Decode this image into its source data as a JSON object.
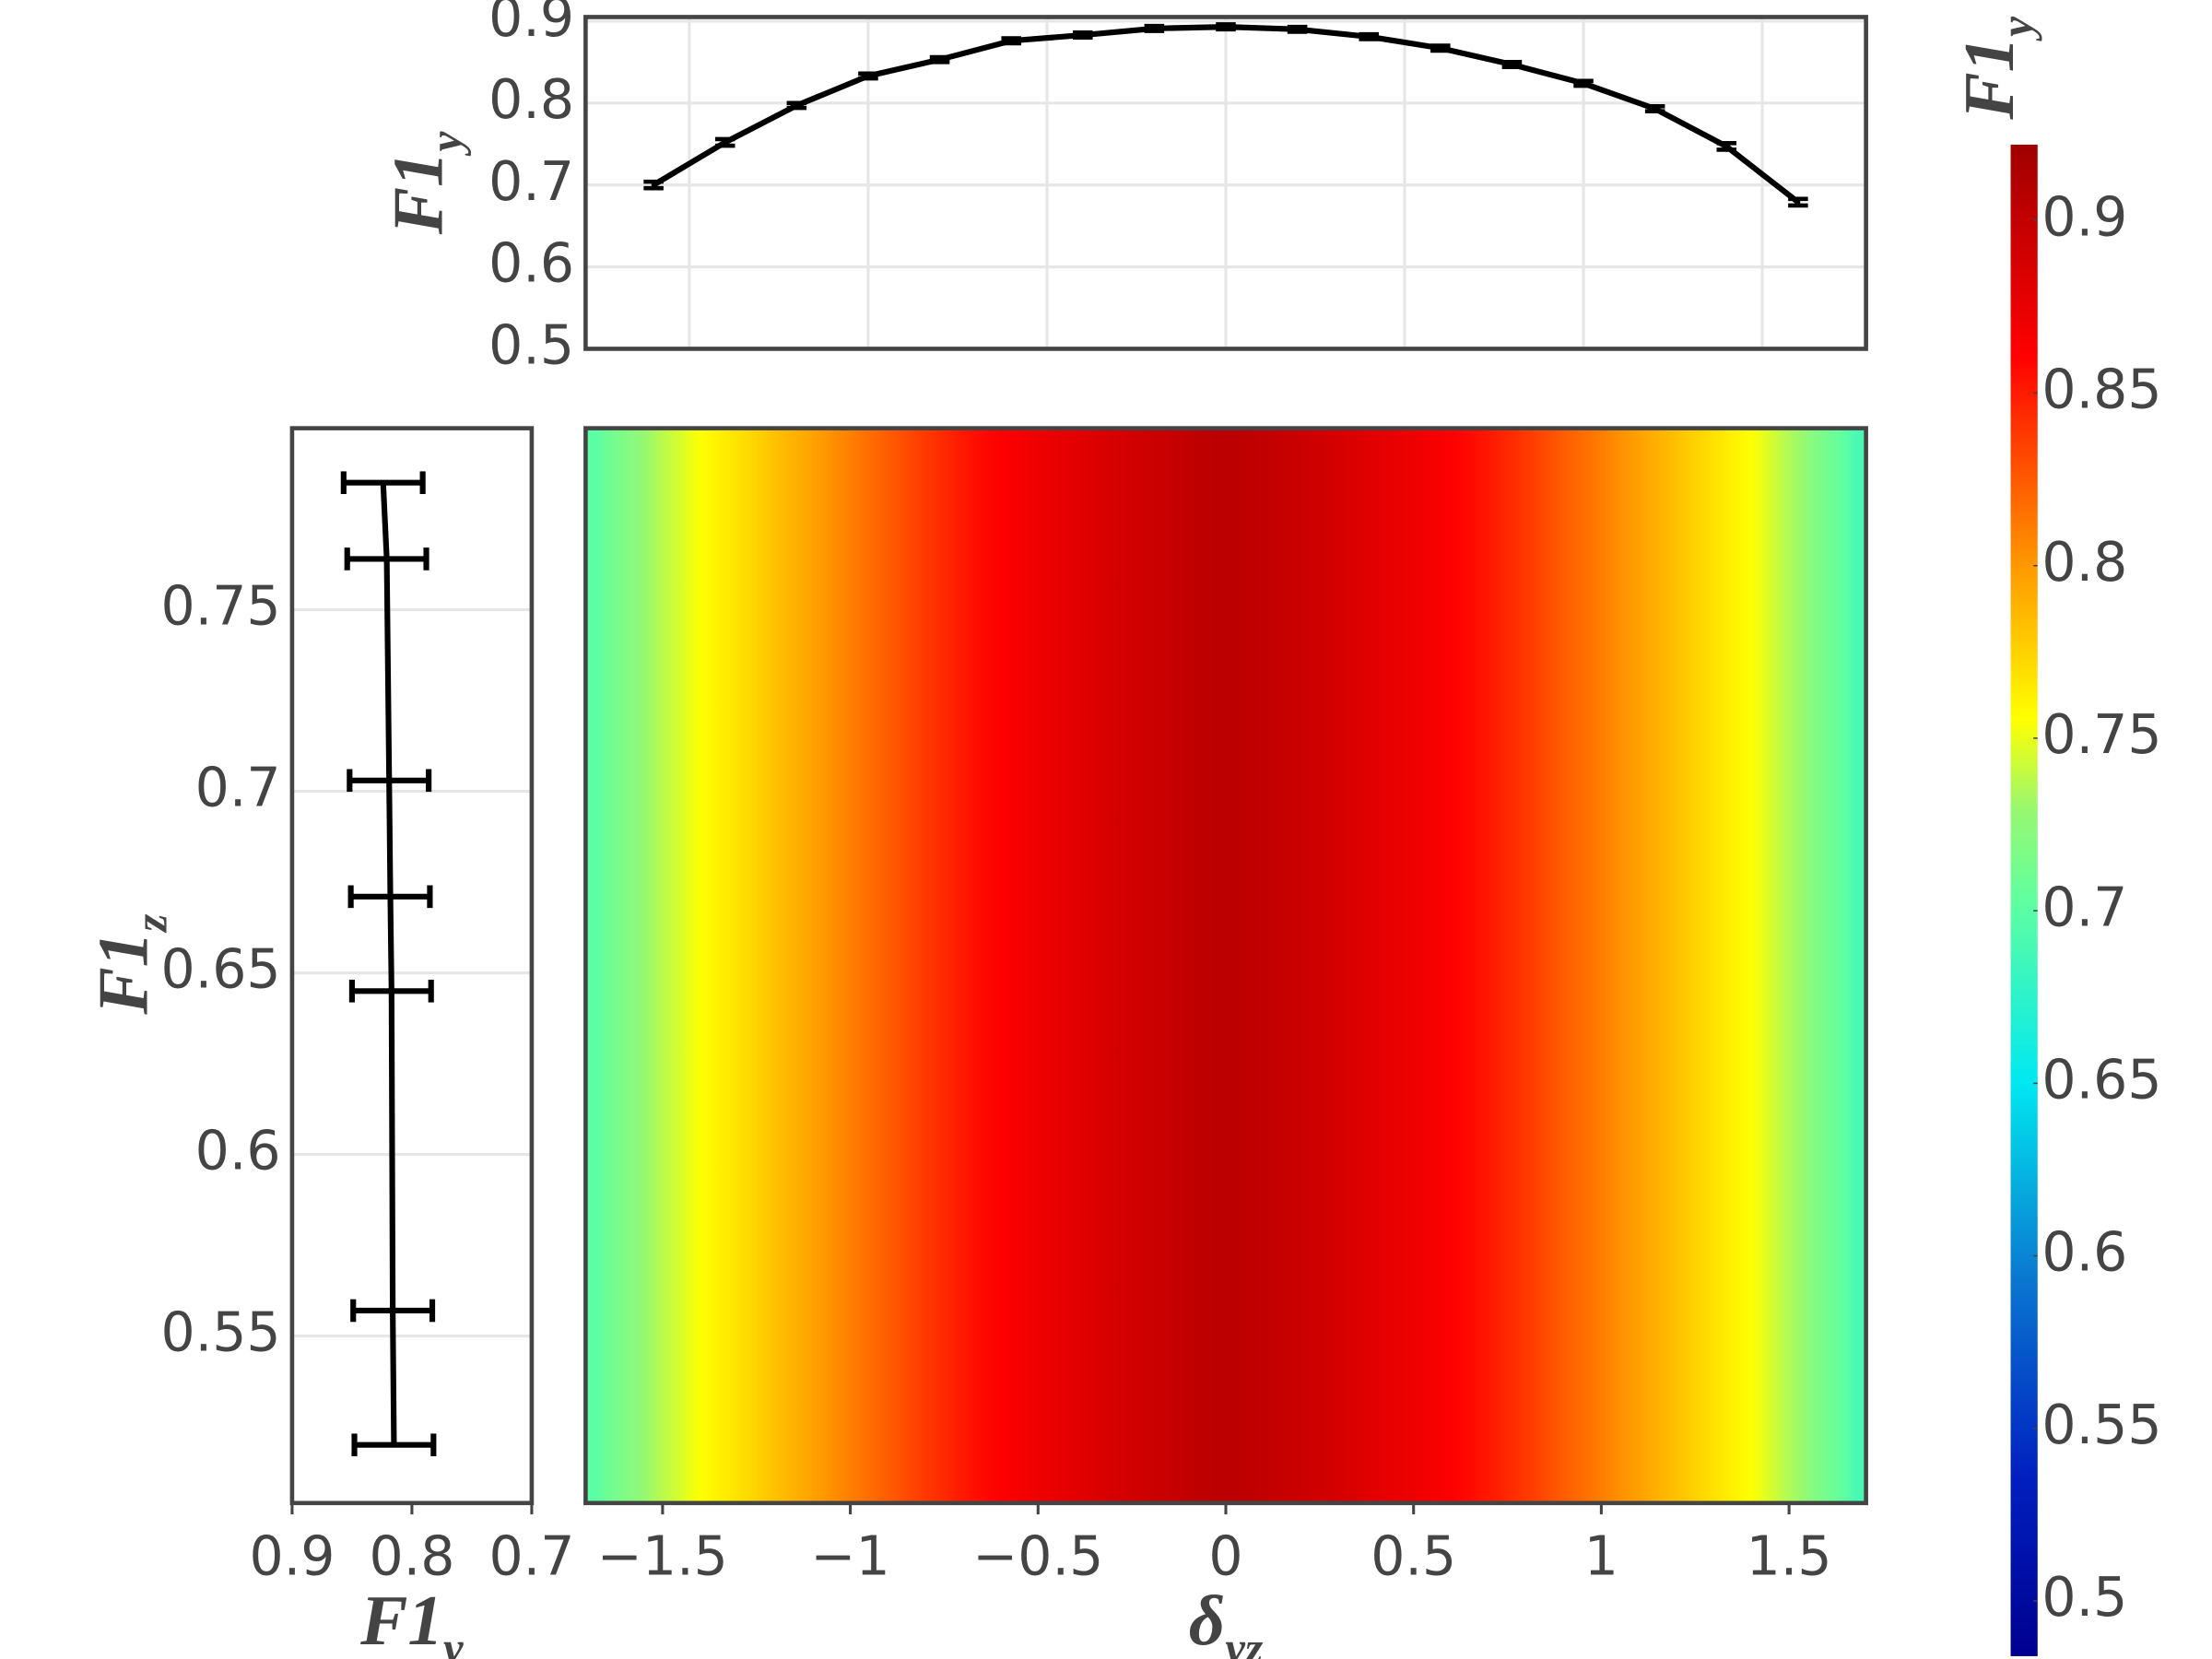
{
  "chart_data": [
    {
      "type": "line",
      "y_label": {
        "base": "F1",
        "sub": "y"
      },
      "x": [
        -1.6,
        -1.4,
        -1.2,
        -1.0,
        -0.8,
        -0.6,
        -0.4,
        -0.2,
        0,
        0.2,
        0.4,
        0.6,
        0.8,
        1.0,
        1.2,
        1.4,
        1.6
      ],
      "values": [
        0.7,
        0.752,
        0.797,
        0.833,
        0.853,
        0.876,
        0.883,
        0.891,
        0.893,
        0.89,
        0.881,
        0.867,
        0.847,
        0.824,
        0.793,
        0.747,
        0.679
      ],
      "errors": [
        0.004,
        0.004,
        0.003,
        0.003,
        0.003,
        0.003,
        0.003,
        0.003,
        0.003,
        0.003,
        0.003,
        0.003,
        0.003,
        0.003,
        0.003,
        0.004,
        0.004
      ],
      "color": "#000000",
      "xlim": [
        -1.79,
        1.79
      ],
      "xticks": [
        -1.5,
        -1,
        -0.5,
        0,
        0.5,
        1,
        1.5
      ],
      "ylim": [
        0.5,
        0.905
      ],
      "yticks": [
        0.5,
        0.6,
        0.7,
        0.8,
        0.9
      ],
      "grid": true
    },
    {
      "type": "line_h",
      "x_label": {
        "base": "F1",
        "sub": "y"
      },
      "y_label": {
        "base": "F1",
        "sub": "z"
      },
      "x": [
        0.824,
        0.821,
        0.819,
        0.818,
        0.817,
        0.816,
        0.815
      ],
      "y": [
        0.785,
        0.764,
        0.703,
        0.671,
        0.645,
        0.557,
        0.52
      ],
      "xerr": [
        0.033,
        0.033,
        0.033,
        0.033,
        0.033,
        0.033,
        0.033
      ],
      "color": "#000000",
      "xlim": [
        0.9,
        0.7
      ],
      "xticks": [
        0.9,
        0.8,
        0.7
      ],
      "ylim": [
        0.504,
        0.8
      ],
      "yticks": [
        0.55,
        0.6,
        0.65,
        0.7,
        0.75
      ],
      "grid": true
    },
    {
      "type": "heatmap",
      "x_label": {
        "base": "δ",
        "sub": "yz"
      },
      "x": [
        -1.7,
        -1.6,
        -1.5,
        -1.4,
        -1.3,
        -1.2,
        -1.1,
        -1.0,
        -0.9,
        -0.8,
        -0.7,
        -0.6,
        -0.5,
        -0.4,
        -0.3,
        -0.2,
        -0.1,
        0,
        0.1,
        0.2,
        0.3,
        0.4,
        0.5,
        0.6,
        0.7,
        0.8,
        0.9,
        1.0,
        1.1,
        1.2,
        1.3,
        1.4,
        1.5,
        1.6,
        1.7
      ],
      "z": [
        0.7,
        0.718,
        0.738,
        0.755,
        0.768,
        0.782,
        0.796,
        0.81,
        0.824,
        0.838,
        0.851,
        0.862,
        0.871,
        0.879,
        0.887,
        0.894,
        0.9,
        0.905,
        0.9,
        0.894,
        0.887,
        0.879,
        0.871,
        0.862,
        0.851,
        0.838,
        0.824,
        0.81,
        0.796,
        0.782,
        0.768,
        0.755,
        0.735,
        0.712,
        0.69
      ],
      "xlim": [
        -1.705,
        1.705
      ],
      "xticks": [
        {
          "value": -1.5,
          "label": "−1.5"
        },
        {
          "value": -1,
          "label": "−1"
        },
        {
          "value": -0.5,
          "label": "−0.5"
        },
        0,
        0.5,
        1,
        1.5
      ],
      "colorbar": {
        "title": {
          "base": "F1",
          "sub": "y"
        },
        "zlim": [
          0.484,
          0.922
        ],
        "zticks": [
          0.5,
          0.55,
          0.6,
          0.65,
          0.7,
          0.75,
          0.8,
          0.85,
          0.9
        ]
      },
      "colorscale": [
        [
          0,
          "#00008f"
        ],
        [
          0.12,
          "#0020c0"
        ],
        [
          0.25,
          "#0a78d0"
        ],
        [
          0.38,
          "#00e8f0"
        ],
        [
          0.5,
          "#60ffa0"
        ],
        [
          0.56,
          "#98f870"
        ],
        [
          0.62,
          "#ffff00"
        ],
        [
          0.72,
          "#ff9900"
        ],
        [
          0.86,
          "#ff0000"
        ],
        [
          1,
          "#a00000"
        ]
      ]
    }
  ]
}
